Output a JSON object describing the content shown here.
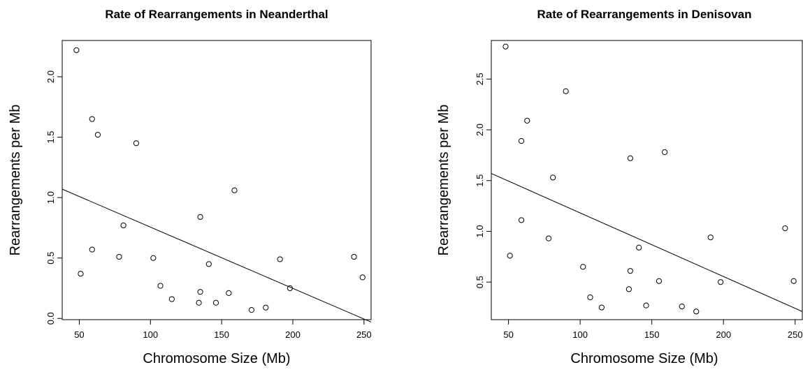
{
  "chart_data": [
    {
      "type": "scatter",
      "title": "Rate of Rearrangements in Neanderthal",
      "xlabel": "Chromosome Size (Mb)",
      "ylabel": "Rearrangements per Mb",
      "xlim": [
        38,
        255
      ],
      "ylim": [
        -0.01,
        2.3
      ],
      "xticks": [
        "50",
        "100",
        "150",
        "200",
        "250"
      ],
      "yticks": [
        "0.0",
        "0.5",
        "1.0",
        "1.5",
        "2.0"
      ],
      "points": [
        {
          "x": 48,
          "y": 2.22
        },
        {
          "x": 51,
          "y": 0.37
        },
        {
          "x": 59,
          "y": 1.65
        },
        {
          "x": 59,
          "y": 0.57
        },
        {
          "x": 63,
          "y": 1.52
        },
        {
          "x": 78,
          "y": 0.51
        },
        {
          "x": 81,
          "y": 0.77
        },
        {
          "x": 90,
          "y": 1.45
        },
        {
          "x": 102,
          "y": 0.5
        },
        {
          "x": 107,
          "y": 0.27
        },
        {
          "x": 115,
          "y": 0.16
        },
        {
          "x": 134,
          "y": 0.13
        },
        {
          "x": 135,
          "y": 0.22
        },
        {
          "x": 135,
          "y": 0.84
        },
        {
          "x": 141,
          "y": 0.45
        },
        {
          "x": 146,
          "y": 0.13
        },
        {
          "x": 155,
          "y": 0.21
        },
        {
          "x": 159,
          "y": 1.06
        },
        {
          "x": 171,
          "y": 0.07
        },
        {
          "x": 181,
          "y": 0.09
        },
        {
          "x": 191,
          "y": 0.49
        },
        {
          "x": 198,
          "y": 0.25
        },
        {
          "x": 243,
          "y": 0.51
        },
        {
          "x": 249,
          "y": 0.34
        }
      ],
      "fit_line": {
        "x": [
          38,
          255
        ],
        "y": [
          1.07,
          -0.03
        ]
      }
    },
    {
      "type": "scatter",
      "title": "Rate of Rearrangements in Denisovan",
      "xlabel": "Chromosome Size (Mb)",
      "ylabel": "Rearrangements per Mb",
      "xlim": [
        38,
        255
      ],
      "ylim": [
        0.13,
        2.88
      ],
      "xticks": [
        "50",
        "100",
        "150",
        "200",
        "250"
      ],
      "yticks": [
        "0.5",
        "1.0",
        "1.5",
        "2.0",
        "2.5"
      ],
      "points": [
        {
          "x": 48,
          "y": 2.82
        },
        {
          "x": 51,
          "y": 0.76
        },
        {
          "x": 59,
          "y": 1.89
        },
        {
          "x": 59,
          "y": 1.11
        },
        {
          "x": 63,
          "y": 2.09
        },
        {
          "x": 78,
          "y": 0.93
        },
        {
          "x": 81,
          "y": 1.53
        },
        {
          "x": 90,
          "y": 2.38
        },
        {
          "x": 102,
          "y": 0.65
        },
        {
          "x": 107,
          "y": 0.35
        },
        {
          "x": 115,
          "y": 0.25
        },
        {
          "x": 134,
          "y": 0.43
        },
        {
          "x": 135,
          "y": 0.61
        },
        {
          "x": 135,
          "y": 1.72
        },
        {
          "x": 141,
          "y": 0.84
        },
        {
          "x": 146,
          "y": 0.27
        },
        {
          "x": 155,
          "y": 0.51
        },
        {
          "x": 159,
          "y": 1.78
        },
        {
          "x": 171,
          "y": 0.26
        },
        {
          "x": 181,
          "y": 0.21
        },
        {
          "x": 191,
          "y": 0.94
        },
        {
          "x": 198,
          "y": 0.5
        },
        {
          "x": 243,
          "y": 1.03
        },
        {
          "x": 249,
          "y": 0.51
        }
      ],
      "fit_line": {
        "x": [
          38,
          255
        ],
        "y": [
          1.57,
          0.21
        ]
      }
    }
  ]
}
